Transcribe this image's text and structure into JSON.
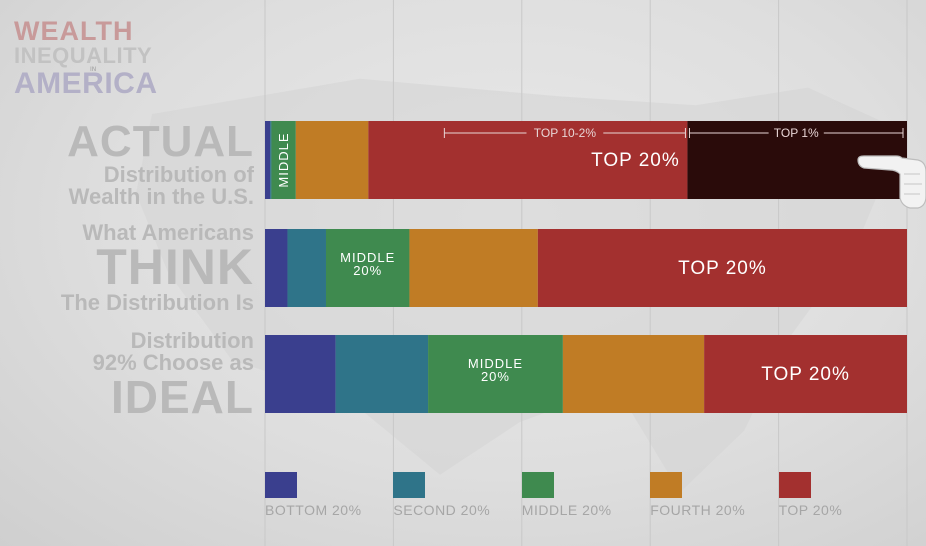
{
  "logo": {
    "line1": "WEALTH",
    "line2": "INEQUALITY",
    "line3": "IN",
    "line4": "AMERICA"
  },
  "labels": {
    "actual": {
      "line1": "ACTUAL",
      "line2": "Distribution of",
      "line3": "Wealth in the U.S."
    },
    "think": {
      "line1": "What Americans",
      "line2": "THINK",
      "line3": "The Distribution Is"
    },
    "ideal": {
      "line1": "Distribution",
      "line2": "92% Choose as",
      "line3": "IDEAL"
    }
  },
  "colors": {
    "bottom": "#3a3f8e",
    "second": "#2f7489",
    "middle": "#3f8a4f",
    "fourth": "#c07c25",
    "top20": "#a3302f",
    "top1": "#2a0b0a",
    "grid": "#c8c8c8",
    "bracket": "#e8d6d6"
  },
  "chart_data": {
    "type": "bar",
    "orientation": "horizontal",
    "stacked": true,
    "xlim": [
      0,
      100
    ],
    "grid": true,
    "legend_position": "bottom",
    "categories": [
      "ACTUAL Distribution of Wealth in the U.S.",
      "What Americans THINK The Distribution Is",
      "Distribution 92% Choose as IDEAL"
    ],
    "series": [
      {
        "name": "BOTTOM 20%",
        "color": "#3a3f8e",
        "values": [
          0.8,
          3.5,
          11
        ]
      },
      {
        "name": "SECOND 20%",
        "color": "#2f7489",
        "values": [
          0.2,
          6,
          14.4
        ]
      },
      {
        "name": "MIDDLE 20%",
        "color": "#3f8a4f",
        "values": [
          3.8,
          13,
          21
        ]
      },
      {
        "name": "FOURTH 20%",
        "color": "#c07c25",
        "values": [
          11.3,
          20,
          22
        ]
      },
      {
        "name": "TOP 20%",
        "color": "#a3302f",
        "values": [
          83.9,
          57.5,
          31.6
        ]
      }
    ],
    "top20_breakdown": {
      "row": 0,
      "segments": [
        {
          "label": "TOP 10-2%",
          "value": 49.7
        },
        {
          "label": "TOP 1%",
          "value": 34.2
        }
      ]
    },
    "segment_labels": [
      [
        null,
        null,
        "MIDDLE",
        null,
        "TOP 20%"
      ],
      [
        null,
        null,
        "MIDDLE\n20%",
        null,
        "TOP 20%"
      ],
      [
        null,
        null,
        "MIDDLE\n20%",
        null,
        "TOP 20%"
      ]
    ]
  }
}
